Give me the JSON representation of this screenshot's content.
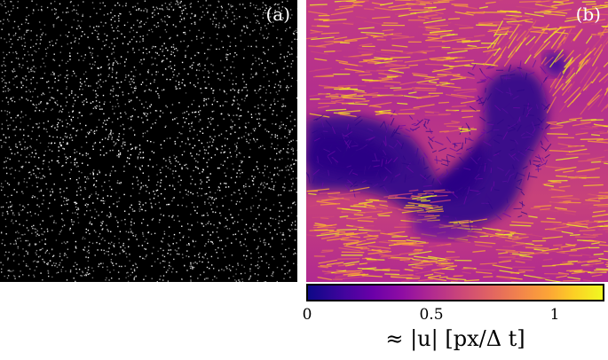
{
  "panels": {
    "a": {
      "label": "(a)",
      "description_icon": "particle-image-icon"
    },
    "b": {
      "label": "(b)",
      "description_icon": "velocity-field-icon"
    }
  },
  "colorbar": {
    "ticks": [
      "0",
      "0.5",
      "1"
    ],
    "label": "≈ |u| [px/Δ t]",
    "colors": [
      "#0d0887",
      "#6a00a8",
      "#b12a90",
      "#e16462",
      "#fca636",
      "#f0f921"
    ]
  }
}
